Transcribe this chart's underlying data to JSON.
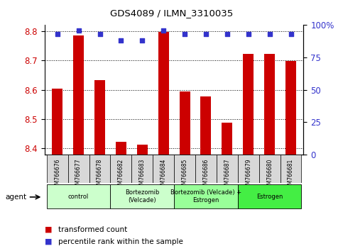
{
  "title": "GDS4089 / ILMN_3310035",
  "samples": [
    "GSM766676",
    "GSM766677",
    "GSM766678",
    "GSM766682",
    "GSM766683",
    "GSM766684",
    "GSM766685",
    "GSM766686",
    "GSM766687",
    "GSM766679",
    "GSM766680",
    "GSM766681"
  ],
  "red_values": [
    8.604,
    8.784,
    8.632,
    8.422,
    8.413,
    8.797,
    8.595,
    8.577,
    8.487,
    8.722,
    8.722,
    8.697
  ],
  "blue_values": [
    93,
    96,
    93,
    88,
    88,
    96,
    93,
    93,
    93,
    93,
    93,
    93
  ],
  "ylim_left": [
    8.38,
    8.82
  ],
  "ylim_right": [
    0,
    100
  ],
  "yticks_left": [
    8.4,
    8.5,
    8.6,
    8.7,
    8.8
  ],
  "yticks_right": [
    0,
    25,
    50,
    75,
    100
  ],
  "ytick_right_labels": [
    "0",
    "25",
    "50",
    "75",
    "100%"
  ],
  "groups": [
    {
      "label": "control",
      "start": 0,
      "end": 3,
      "color": "#ccffcc"
    },
    {
      "label": "Bortezomib\n(Velcade)",
      "start": 3,
      "end": 6,
      "color": "#ccffcc"
    },
    {
      "label": "Bortezomib (Velcade) +\nEstrogen",
      "start": 6,
      "end": 9,
      "color": "#99ff99"
    },
    {
      "label": "Estrogen",
      "start": 9,
      "end": 12,
      "color": "#44ee44"
    }
  ],
  "bar_color": "#cc0000",
  "dot_color": "#3333cc",
  "bar_width": 0.5,
  "legend_items": [
    {
      "color": "#cc0000",
      "label": "transformed count"
    },
    {
      "color": "#3333cc",
      "label": "percentile rank within the sample"
    }
  ],
  "agent_label": "agent"
}
